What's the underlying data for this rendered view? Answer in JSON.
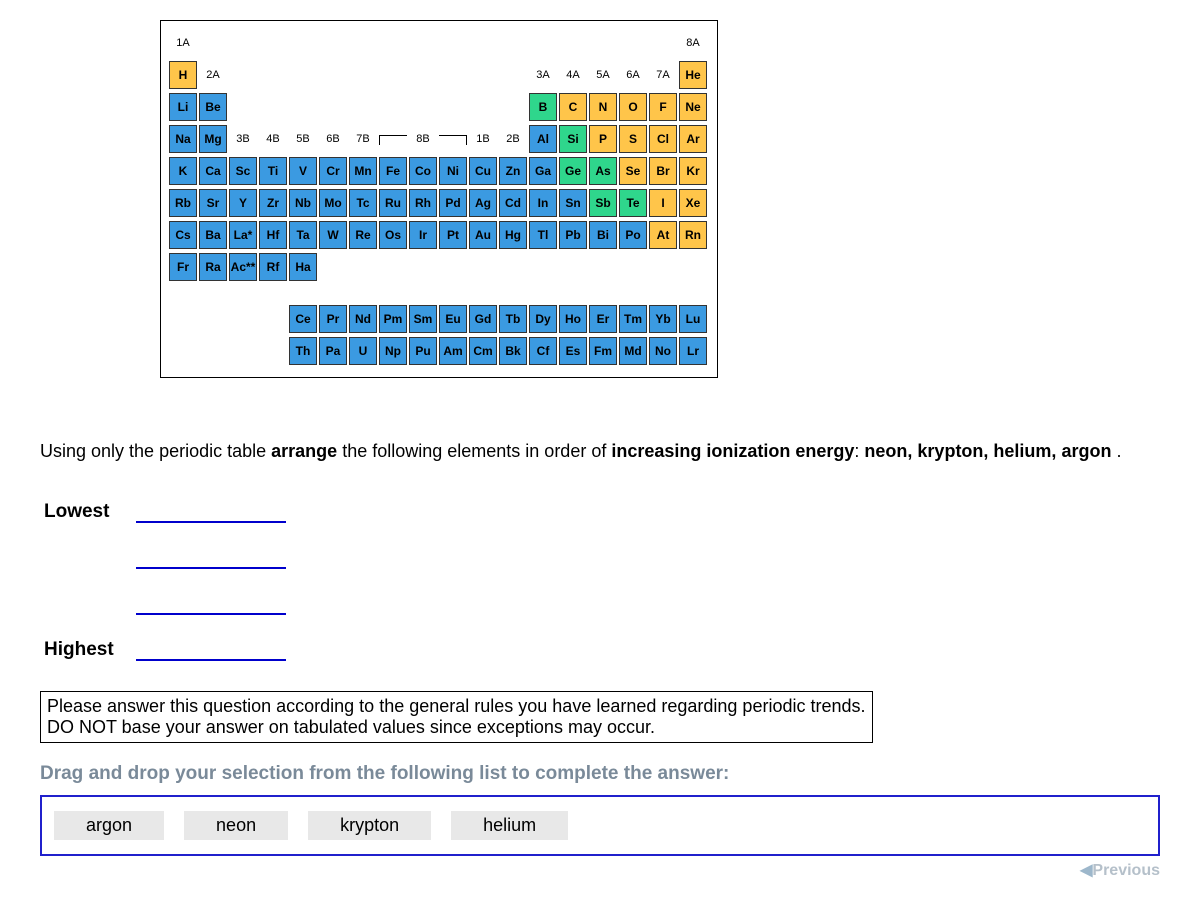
{
  "colors": {
    "nonmetal_yellow": "#ffc54a",
    "metal_blue": "#3b9ae1",
    "metalloid_green": "#2fd68c",
    "label_text": "#000000",
    "drop_line": "#0000cc",
    "drag_border": "#2020cc",
    "drag_item_bg": "#e8e8e8",
    "prompt_grey": "#7a8a99"
  },
  "periodic_table": {
    "group_labels_top": [
      "1A",
      "8A"
    ],
    "group_labels_row2": [
      "2A",
      "3A",
      "4A",
      "5A",
      "6A",
      "7A"
    ],
    "group_labels_row4": [
      "3B",
      "4B",
      "5B",
      "6B",
      "7B",
      "8B",
      "1B",
      "2B"
    ],
    "rows": [
      [
        "H",
        "",
        "",
        "",
        "",
        "",
        "",
        "",
        "",
        "",
        "",
        "",
        "",
        "",
        "",
        "",
        "",
        "He"
      ],
      [
        "Li",
        "Be",
        "",
        "",
        "",
        "",
        "",
        "",
        "",
        "",
        "",
        "",
        "B",
        "C",
        "N",
        "O",
        "F",
        "Ne"
      ],
      [
        "Na",
        "Mg",
        "",
        "",
        "",
        "",
        "",
        "",
        "",
        "",
        "",
        "",
        "Al",
        "Si",
        "P",
        "S",
        "Cl",
        "Ar"
      ],
      [
        "K",
        "Ca",
        "Sc",
        "Ti",
        "V",
        "Cr",
        "Mn",
        "Fe",
        "Co",
        "Ni",
        "Cu",
        "Zn",
        "Ga",
        "Ge",
        "As",
        "Se",
        "Br",
        "Kr"
      ],
      [
        "Rb",
        "Sr",
        "Y",
        "Zr",
        "Nb",
        "Mo",
        "Tc",
        "Ru",
        "Rh",
        "Pd",
        "Ag",
        "Cd",
        "In",
        "Sn",
        "Sb",
        "Te",
        "I",
        "Xe"
      ],
      [
        "Cs",
        "Ba",
        "La*",
        "Hf",
        "Ta",
        "W",
        "Re",
        "Os",
        "Ir",
        "Pt",
        "Au",
        "Hg",
        "Tl",
        "Pb",
        "Bi",
        "Po",
        "At",
        "Rn"
      ],
      [
        "Fr",
        "Ra",
        "Ac**",
        "Rf",
        "Ha",
        "",
        "",
        "",
        "",
        "",
        "",
        "",
        "",
        "",
        "",
        "",
        "",
        ""
      ]
    ],
    "lanthanides": [
      "Ce",
      "Pr",
      "Nd",
      "Pm",
      "Sm",
      "Eu",
      "Gd",
      "Tb",
      "Dy",
      "Ho",
      "Er",
      "Tm",
      "Yb",
      "Lu"
    ],
    "actinides": [
      "Th",
      "Pa",
      "U",
      "Np",
      "Pu",
      "Am",
      "Cm",
      "Bk",
      "Cf",
      "Es",
      "Fm",
      "Md",
      "No",
      "Lr"
    ],
    "color_map": {
      "H": "y",
      "He": "y",
      "Li": "b",
      "Be": "b",
      "B": "g",
      "C": "y",
      "N": "y",
      "O": "y",
      "F": "y",
      "Ne": "y",
      "Na": "b",
      "Mg": "b",
      "Al": "b",
      "Si": "g",
      "P": "y",
      "S": "y",
      "Cl": "y",
      "Ar": "y",
      "K": "b",
      "Ca": "b",
      "Sc": "b",
      "Ti": "b",
      "V": "b",
      "Cr": "b",
      "Mn": "b",
      "Fe": "b",
      "Co": "b",
      "Ni": "b",
      "Cu": "b",
      "Zn": "b",
      "Ga": "b",
      "Ge": "g",
      "As": "g",
      "Se": "y",
      "Br": "y",
      "Kr": "y",
      "Rb": "b",
      "Sr": "b",
      "Y": "b",
      "Zr": "b",
      "Nb": "b",
      "Mo": "b",
      "Tc": "b",
      "Ru": "b",
      "Rh": "b",
      "Pd": "b",
      "Ag": "b",
      "Cd": "b",
      "In": "b",
      "Sn": "b",
      "Sb": "g",
      "Te": "g",
      "I": "y",
      "Xe": "y",
      "Cs": "b",
      "Ba": "b",
      "La*": "b",
      "Hf": "b",
      "Ta": "b",
      "W": "b",
      "Re": "b",
      "Os": "b",
      "Ir": "b",
      "Pt": "b",
      "Au": "b",
      "Hg": "b",
      "Tl": "b",
      "Pb": "b",
      "Bi": "b",
      "Po": "b",
      "At": "y",
      "Rn": "y",
      "Fr": "b",
      "Ra": "b",
      "Ac**": "b",
      "Rf": "b",
      "Ha": "b",
      "Ce": "b",
      "Pr": "b",
      "Nd": "b",
      "Pm": "b",
      "Sm": "b",
      "Eu": "b",
      "Gd": "b",
      "Tb": "b",
      "Dy": "b",
      "Ho": "b",
      "Er": "b",
      "Tm": "b",
      "Yb": "b",
      "Lu": "b",
      "Th": "b",
      "Pa": "b",
      "U": "b",
      "Np": "b",
      "Pu": "b",
      "Am": "b",
      "Cm": "b",
      "Bk": "b",
      "Cf": "b",
      "Es": "b",
      "Fm": "b",
      "Md": "b",
      "No": "b",
      "Lr": "b"
    }
  },
  "question": {
    "prefix": "Using only the periodic table ",
    "arrange": "arrange",
    "mid": " the following elements in order of ",
    "trend": "increasing ionization energy",
    "colon": ": ",
    "elements": "neon, krypton, helium, argon ",
    "period": "."
  },
  "slots": {
    "lowest": "Lowest",
    "highest": "Highest"
  },
  "note": {
    "line1": "Please answer this question according to the general rules you have learned regarding periodic trends.",
    "line2": "DO NOT base your answer on tabulated values since exceptions may occur."
  },
  "drag": {
    "prompt": "Drag and drop your selection from the following list to complete the answer:",
    "items": [
      "argon",
      "neon",
      "krypton",
      "helium"
    ]
  },
  "nav": {
    "previous": "Previous"
  }
}
